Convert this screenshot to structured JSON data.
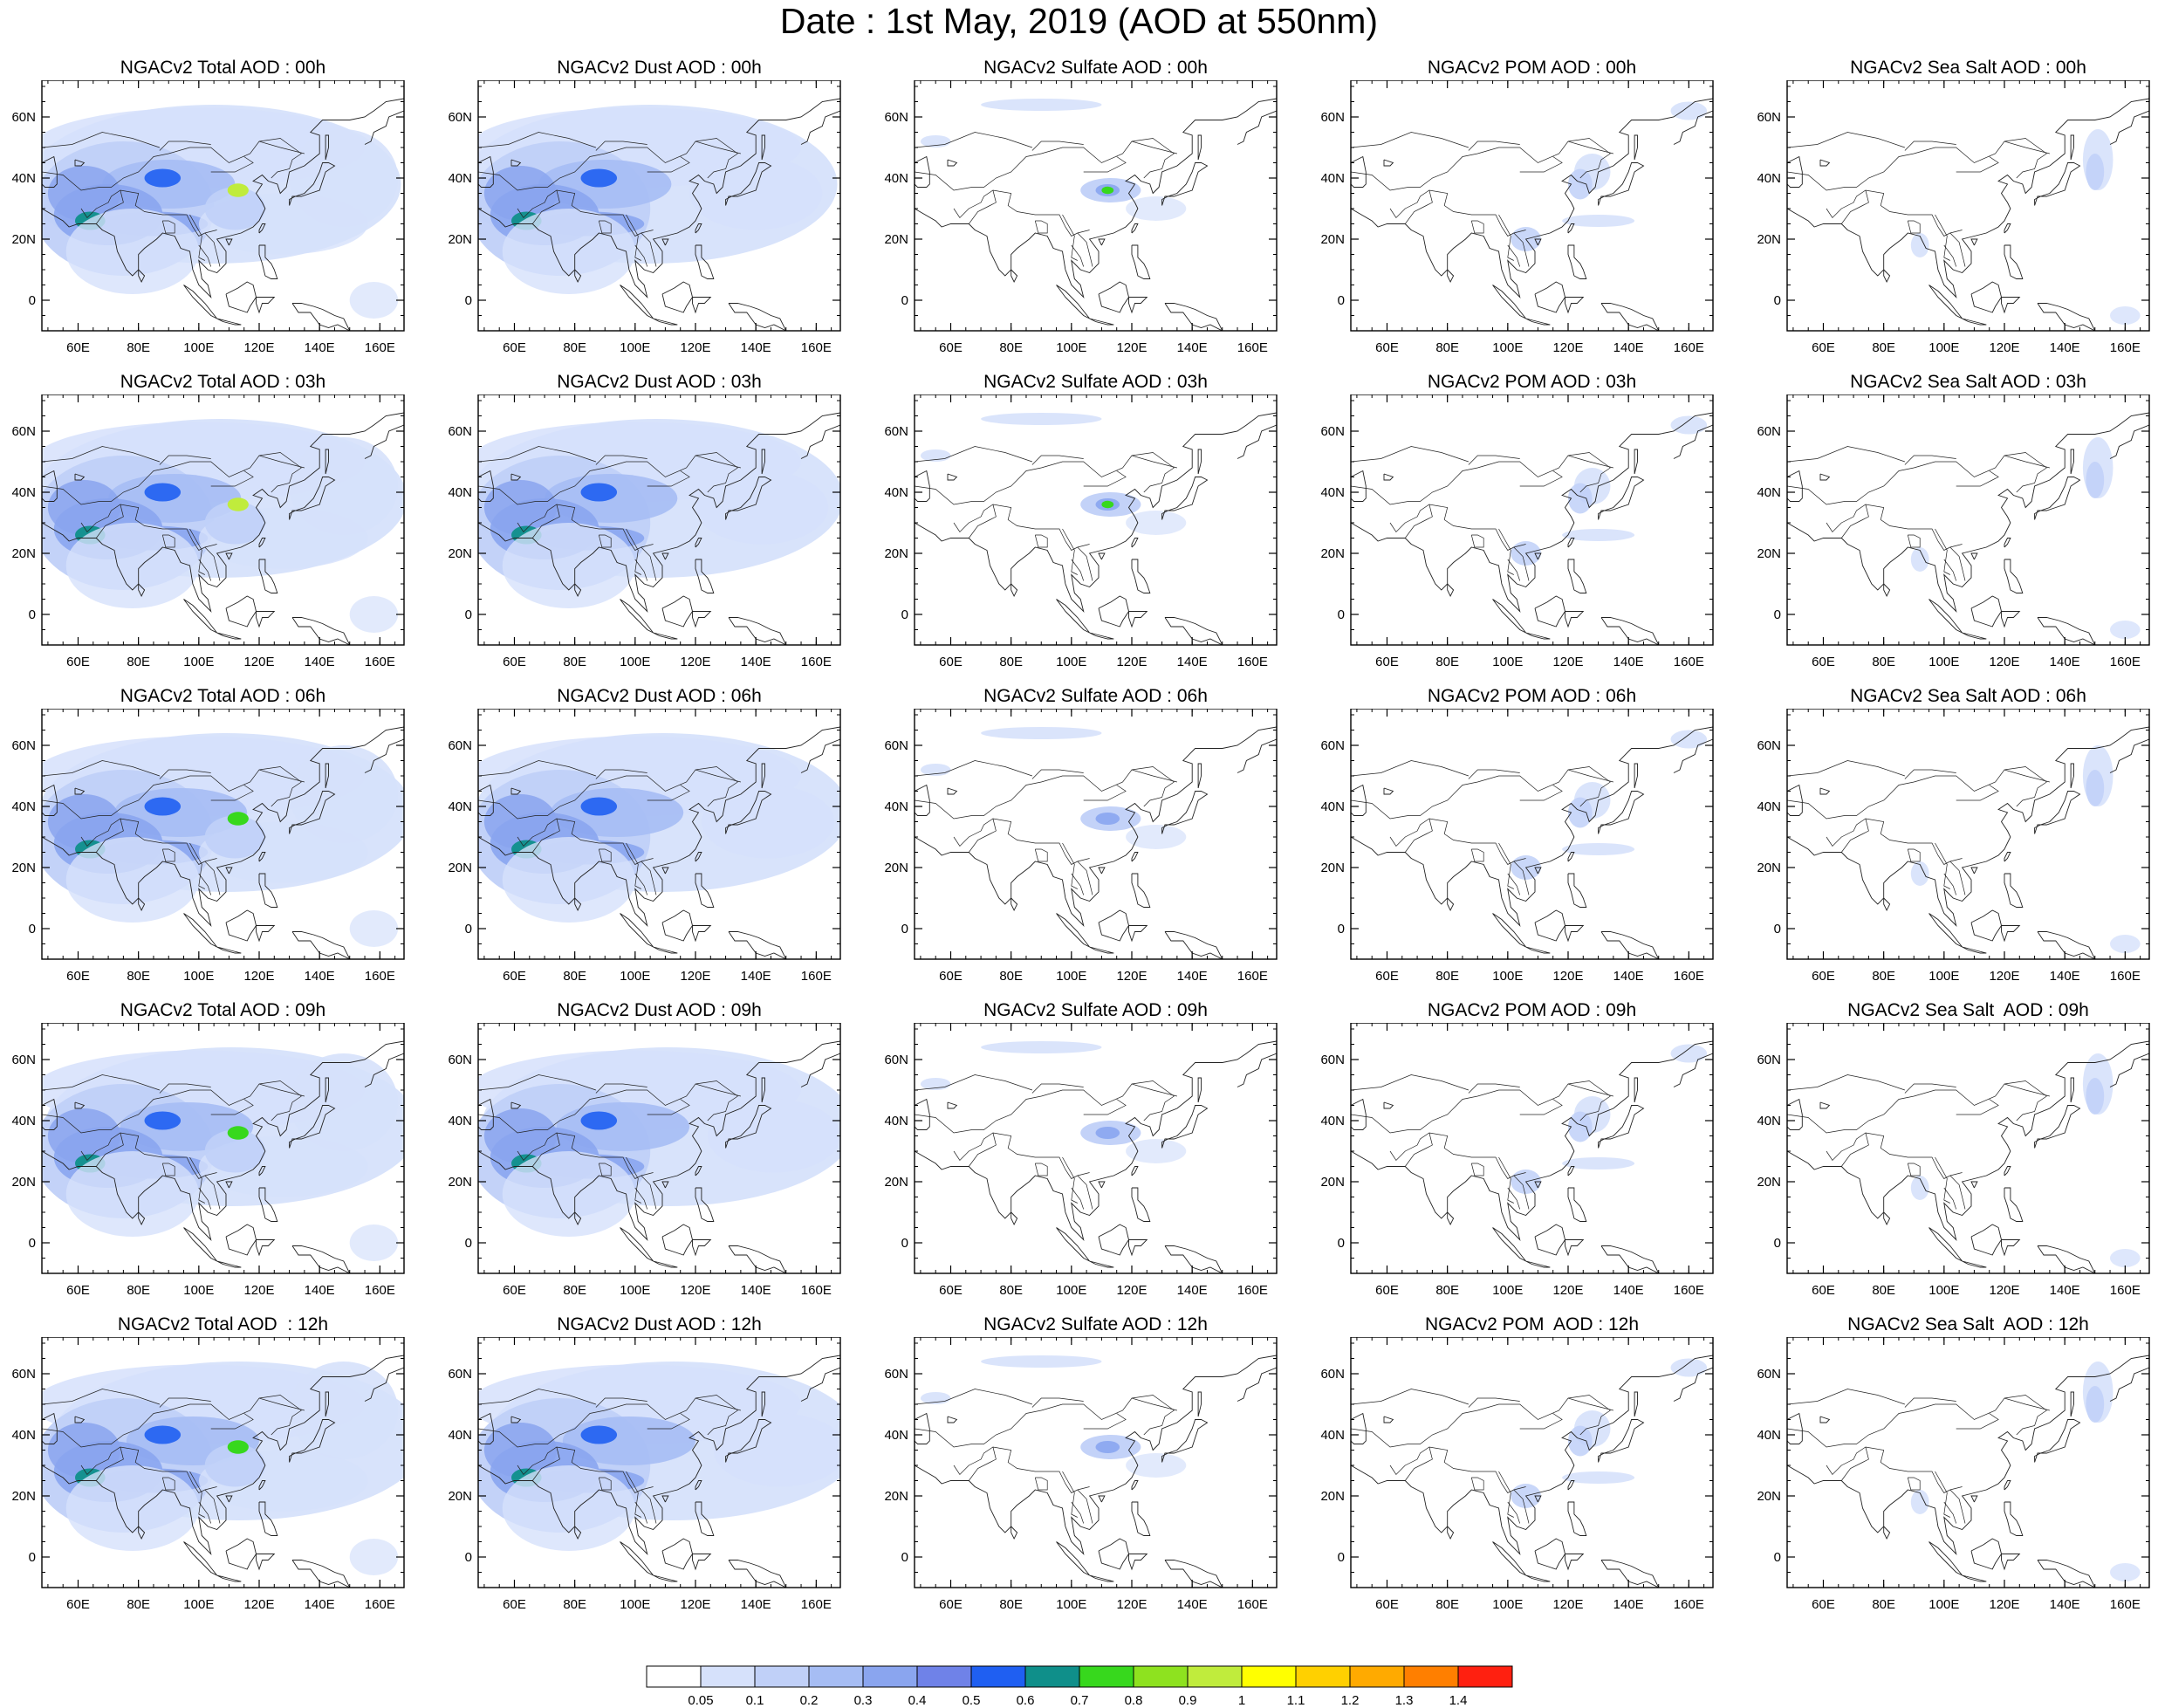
{
  "title": "Date : 1st May, 2019 (AOD at 550nm)",
  "map": {
    "xticks": [
      60,
      80,
      100,
      120,
      140,
      160
    ],
    "xtick_labels": [
      "60E",
      "80E",
      "100E",
      "120E",
      "140E",
      "160E"
    ],
    "yticks": [
      0,
      20,
      40,
      60
    ],
    "ytick_labels": [
      "0",
      "20N",
      "40N",
      "60N"
    ],
    "lon_range": [
      48,
      168
    ],
    "lat_range": [
      -10,
      72
    ]
  },
  "panels": [
    [
      "NGACv2 Total AOD : 00h",
      "NGACv2 Dust AOD : 00h",
      "NGACv2 Sulfate AOD : 00h",
      "NGACv2 POM AOD : 00h",
      "NGACv2 Sea Salt AOD : 00h"
    ],
    [
      "NGACv2 Total AOD : 03h",
      "NGACv2 Dust AOD : 03h",
      "NGACv2 Sulfate AOD : 03h",
      "NGACv2 POM AOD : 03h",
      "NGACv2 Sea Salt AOD : 03h"
    ],
    [
      "NGACv2 Total AOD : 06h",
      "NGACv2 Dust AOD : 06h",
      "NGACv2 Sulfate AOD : 06h",
      "NGACv2 POM AOD : 06h",
      "NGACv2 Sea Salt AOD : 06h"
    ],
    [
      "NGACv2 Total AOD : 09h",
      "NGACv2 Dust AOD : 09h",
      "NGACv2 Sulfate AOD : 09h",
      "NGACv2 POM AOD : 09h",
      "NGACv2 Sea Salt  AOD : 09h"
    ],
    [
      "NGACv2 Total AOD  : 12h",
      "NGACv2 Dust AOD : 12h",
      "NGACv2 Sulfate AOD : 12h",
      "NGACv2 POM  AOD : 12h",
      "NGACv2 Sea Salt  AOD : 12h"
    ]
  ],
  "colorbar": {
    "labels": [
      "0.05",
      "0.1",
      "0.2",
      "0.3",
      "0.4",
      "0.5",
      "0.6",
      "0.7",
      "0.8",
      "0.9",
      "1",
      "1.1",
      "1.2",
      "1.3",
      "1.4"
    ],
    "colors": [
      "#ffffff",
      "#d6e1fb",
      "#c0d0f8",
      "#a6bdf4",
      "#8aa5ef",
      "#6f82e8",
      "#1f5ff2",
      "#0f8f8a",
      "#37d81d",
      "#8ee21f",
      "#c0ec3c",
      "#ffff00",
      "#ffd000",
      "#ffaa00",
      "#ff7f00",
      "#ff2010"
    ]
  }
}
